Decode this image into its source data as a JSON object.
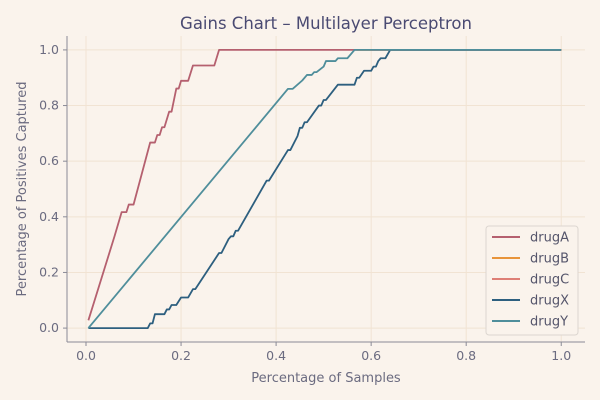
{
  "chart_data": {
    "type": "line",
    "title": "Gains Chart – Multilayer Perceptron",
    "xlabel": "Percentage of Samples",
    "ylabel": "Percentage of Positives Captured",
    "xlim": [
      -0.04,
      1.05
    ],
    "ylim": [
      -0.05,
      1.05
    ],
    "xticks": [
      0.0,
      0.2,
      0.4,
      0.6,
      0.8,
      1.0
    ],
    "yticks": [
      0.0,
      0.2,
      0.4,
      0.6,
      0.8,
      1.0
    ],
    "xtick_labels": [
      "0.0",
      "0.2",
      "0.4",
      "0.6",
      "0.8",
      "1.0"
    ],
    "ytick_labels": [
      "0.0",
      "0.2",
      "0.4",
      "0.6",
      "0.8",
      "1.0"
    ],
    "grid": true,
    "legend_position": "lower-right",
    "series": [
      {
        "name": "drugA",
        "color": "#b5606f",
        "points": [
          [
            0.005,
            0.028
          ],
          [
            0.02,
            0.11
          ],
          [
            0.04,
            0.22
          ],
          [
            0.06,
            0.33
          ],
          [
            0.075,
            0.417
          ],
          [
            0.085,
            0.417
          ],
          [
            0.09,
            0.444
          ],
          [
            0.1,
            0.444
          ],
          [
            0.135,
            0.667
          ],
          [
            0.145,
            0.667
          ],
          [
            0.15,
            0.694
          ],
          [
            0.155,
            0.694
          ],
          [
            0.16,
            0.722
          ],
          [
            0.165,
            0.722
          ],
          [
            0.175,
            0.778
          ],
          [
            0.18,
            0.778
          ],
          [
            0.19,
            0.861
          ],
          [
            0.195,
            0.861
          ],
          [
            0.2,
            0.889
          ],
          [
            0.215,
            0.889
          ],
          [
            0.225,
            0.944
          ],
          [
            0.27,
            0.944
          ],
          [
            0.28,
            1.0
          ],
          [
            1.0,
            1.0
          ]
        ]
      },
      {
        "name": "drugB",
        "color": "#e8943a",
        "points": [
          [
            0.57,
            1.0
          ],
          [
            1.0,
            1.0
          ]
        ]
      },
      {
        "name": "drugC",
        "color": "#de7f76",
        "points": [
          [
            0.6,
            1.0
          ],
          [
            1.0,
            1.0
          ]
        ]
      },
      {
        "name": "drugX",
        "color": "#2d5f7f",
        "points": [
          [
            0.005,
            0.0
          ],
          [
            0.13,
            0.0
          ],
          [
            0.135,
            0.017
          ],
          [
            0.14,
            0.017
          ],
          [
            0.145,
            0.05
          ],
          [
            0.165,
            0.05
          ],
          [
            0.17,
            0.067
          ],
          [
            0.175,
            0.067
          ],
          [
            0.18,
            0.083
          ],
          [
            0.19,
            0.083
          ],
          [
            0.2,
            0.11
          ],
          [
            0.215,
            0.11
          ],
          [
            0.225,
            0.14
          ],
          [
            0.23,
            0.14
          ],
          [
            0.28,
            0.27
          ],
          [
            0.285,
            0.27
          ],
          [
            0.3,
            0.32
          ],
          [
            0.305,
            0.33
          ],
          [
            0.31,
            0.33
          ],
          [
            0.315,
            0.35
          ],
          [
            0.32,
            0.35
          ],
          [
            0.38,
            0.53
          ],
          [
            0.385,
            0.53
          ],
          [
            0.425,
            0.64
          ],
          [
            0.43,
            0.64
          ],
          [
            0.445,
            0.69
          ],
          [
            0.45,
            0.72
          ],
          [
            0.455,
            0.72
          ],
          [
            0.46,
            0.74
          ],
          [
            0.465,
            0.74
          ],
          [
            0.49,
            0.8
          ],
          [
            0.495,
            0.8
          ],
          [
            0.5,
            0.82
          ],
          [
            0.505,
            0.82
          ],
          [
            0.53,
            0.875
          ],
          [
            0.565,
            0.875
          ],
          [
            0.57,
            0.9
          ],
          [
            0.575,
            0.9
          ],
          [
            0.585,
            0.925
          ],
          [
            0.6,
            0.925
          ],
          [
            0.605,
            0.94
          ],
          [
            0.61,
            0.94
          ],
          [
            0.615,
            0.96
          ],
          [
            0.62,
            0.97
          ],
          [
            0.63,
            0.97
          ],
          [
            0.64,
            1.0
          ],
          [
            1.0,
            1.0
          ]
        ]
      },
      {
        "name": "drugY",
        "color": "#4f8e9b",
        "points": [
          [
            0.005,
            0.0
          ],
          [
            0.425,
            0.86
          ],
          [
            0.43,
            0.86
          ],
          [
            0.435,
            0.86
          ],
          [
            0.455,
            0.89
          ],
          [
            0.465,
            0.91
          ],
          [
            0.475,
            0.91
          ],
          [
            0.48,
            0.92
          ],
          [
            0.485,
            0.92
          ],
          [
            0.5,
            0.94
          ],
          [
            0.505,
            0.96
          ],
          [
            0.525,
            0.96
          ],
          [
            0.53,
            0.97
          ],
          [
            0.55,
            0.97
          ],
          [
            0.565,
            1.0
          ],
          [
            1.0,
            1.0
          ]
        ]
      }
    ]
  }
}
